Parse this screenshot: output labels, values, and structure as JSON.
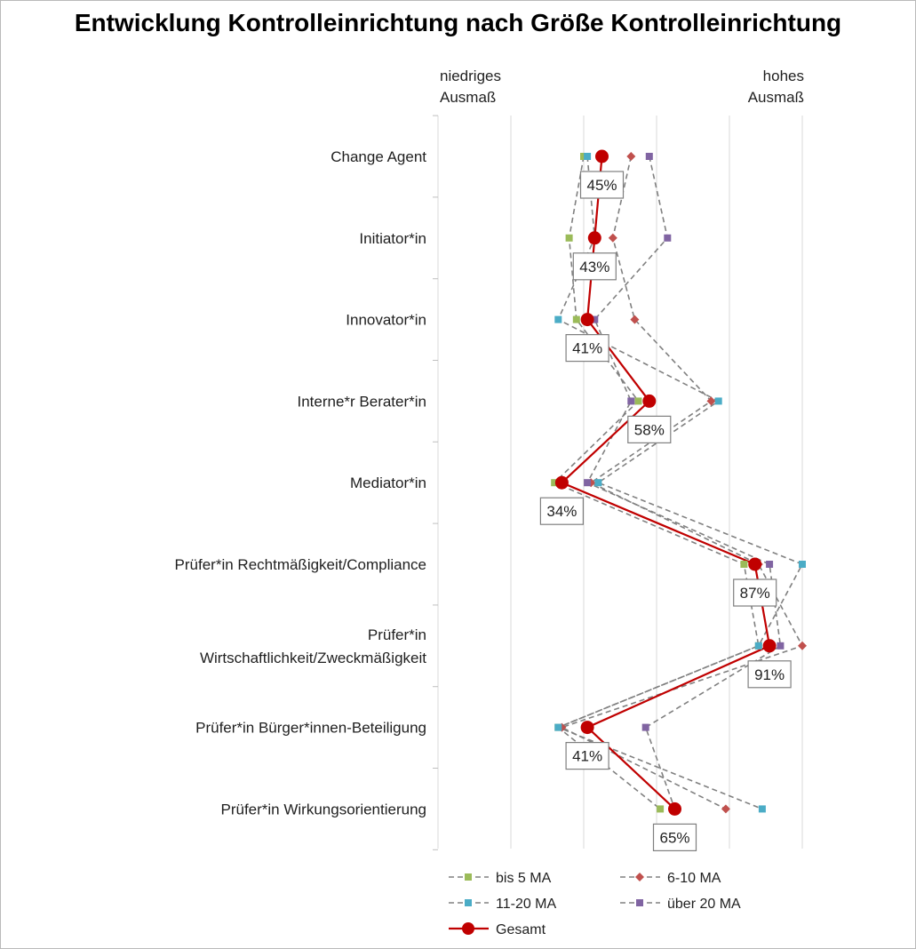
{
  "chart_data": {
    "type": "line",
    "title": "Entwicklung Kontrolleinrichtung nach Größe Kontrolleinrichtung",
    "scale_low_label": [
      "niedriges",
      "Ausmaß"
    ],
    "scale_high_label": [
      "hohes",
      "Ausmaß"
    ],
    "xlim": [
      0,
      100
    ],
    "grid": true,
    "legend_position": "bottom",
    "categories": [
      "Change Agent",
      "Initiator*in",
      "Innovator*in",
      "Interne*r Berater*in",
      "Mediator*in",
      "Prüfer*in Rechtmäßigkeit/Compliance",
      "Prüfer*in Wirtschaftlichkeit/Zweckmäßigkeit",
      "Prüfer*in Bürger*innen-Beteiligung",
      "Prüfer*in Wirkungsorientierung"
    ],
    "category_lines": [
      [
        "Change Agent"
      ],
      [
        "Initiator*in"
      ],
      [
        "Innovator*in"
      ],
      [
        "Interne*r Berater*in"
      ],
      [
        "Mediator*in"
      ],
      [
        "Prüfer*in Rechtmäßigkeit/Compliance"
      ],
      [
        "Prüfer*in",
        "Wirtschaftlichkeit/Zweckmäßigkeit"
      ],
      [
        "Prüfer*in Bürger*innen-Beteiligung"
      ],
      [
        "Prüfer*in Wirkungsorientierung"
      ]
    ],
    "series": [
      {
        "name": "bis 5 MA",
        "color": "#9bbb59",
        "marker": "square",
        "style": "dashed",
        "values": [
          40,
          36,
          38,
          55,
          32,
          84,
          88,
          33,
          61
        ]
      },
      {
        "name": "6-10 MA",
        "color": "#c0504d",
        "marker": "diamond",
        "style": "dashed",
        "values": [
          53,
          48,
          54,
          75,
          42,
          88,
          100,
          34,
          79
        ]
      },
      {
        "name": "11-20 MA",
        "color": "#4bacc6",
        "marker": "square",
        "style": "dashed",
        "values": [
          41,
          43,
          33,
          77,
          44,
          100,
          88,
          33,
          89
        ]
      },
      {
        "name": "über 20 MA",
        "color": "#8064a2",
        "marker": "square",
        "style": "dashed",
        "values": [
          58,
          63,
          43,
          53,
          41,
          91,
          94,
          57,
          65
        ]
      },
      {
        "name": "Gesamt",
        "color": "#c00000",
        "marker": "circle",
        "style": "solid",
        "values": [
          45,
          43,
          41,
          58,
          34,
          87,
          91,
          41,
          65
        ],
        "data_labels": [
          "45%",
          "43%",
          "41%",
          "58%",
          "34%",
          "87%",
          "91%",
          "41%",
          "65%"
        ]
      }
    ]
  }
}
